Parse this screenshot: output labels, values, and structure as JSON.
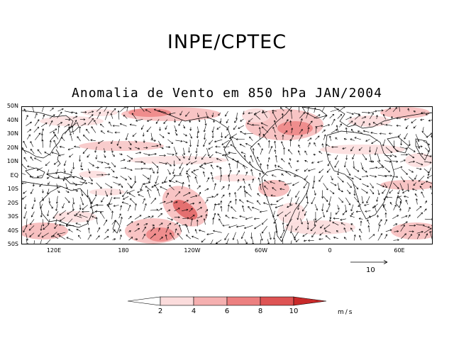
{
  "header": {
    "title": "INPE/CPTEC"
  },
  "map": {
    "title": "Anomalia de Vento em 850 hPa JAN/2004",
    "lat_labels": [
      "50N",
      "40N",
      "30N",
      "20N",
      "10N",
      "EQ",
      "10S",
      "20S",
      "30S",
      "40S",
      "50S"
    ],
    "lon_labels": [
      "120E",
      "180",
      "120W",
      "60W",
      "0",
      "60E"
    ]
  },
  "reference_vector": {
    "label": "10"
  },
  "colorbar": {
    "labels": [
      "2",
      "4",
      "6",
      "8",
      "10"
    ],
    "colors": [
      "#ffffff",
      "#fbdcdc",
      "#f5b0b0",
      "#ec8080",
      "#de5454",
      "#c82a2a"
    ],
    "units": "m/s"
  }
}
